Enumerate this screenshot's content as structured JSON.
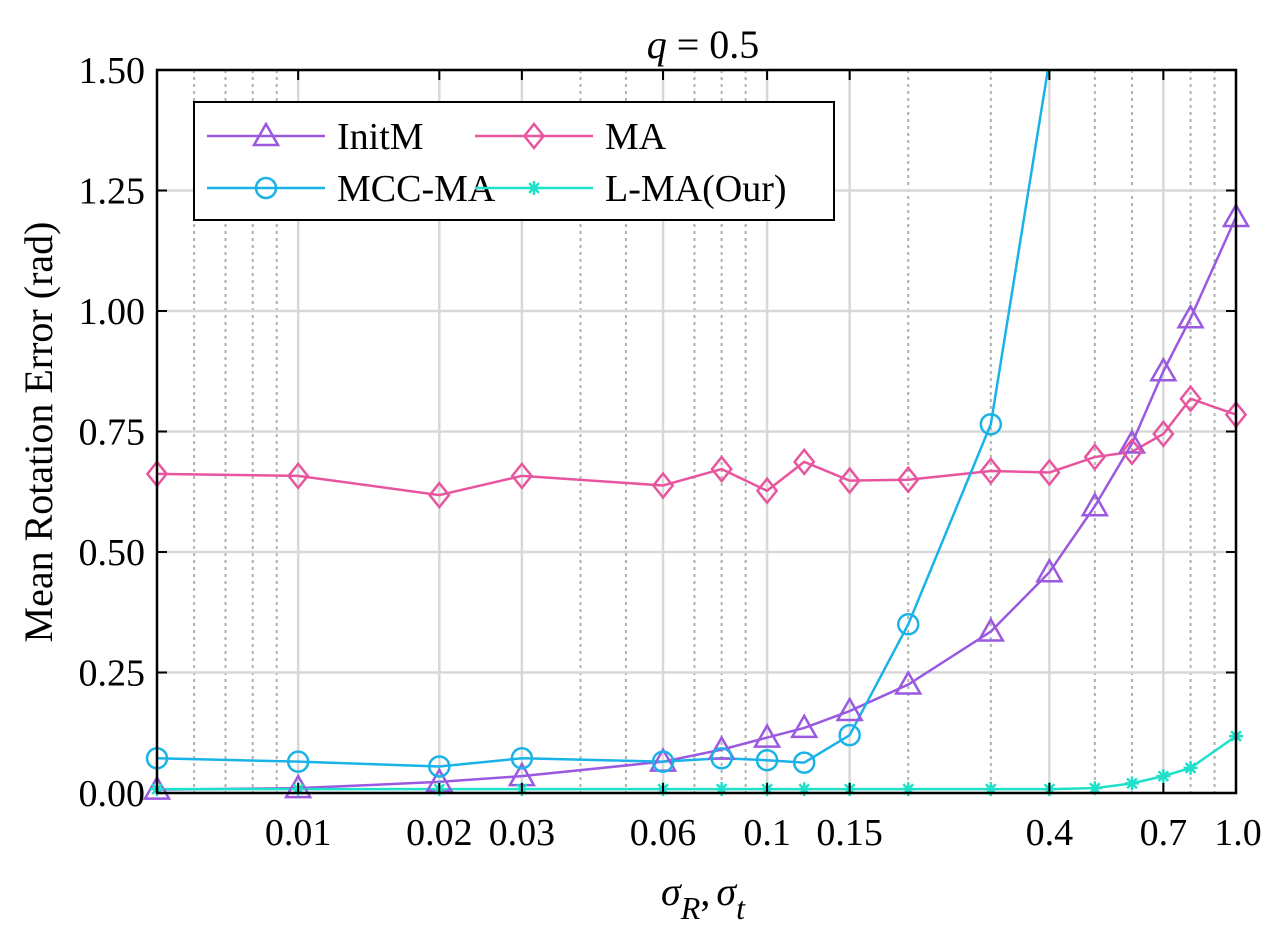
{
  "chart_data": {
    "type": "line",
    "title": "q = 0.5",
    "title_var": "q",
    "title_rest": " = 0.5",
    "xlabel": "σR, σt",
    "xlabel_parts": [
      "σ",
      "R",
      ",",
      "σ",
      "t"
    ],
    "ylabel": "Mean Rotation Error (rad)",
    "xscale": "log",
    "xlim": [
      0.005,
      1.0
    ],
    "ylim": [
      0.0,
      1.5
    ],
    "grid": true,
    "legend_position": "top-left",
    "xtick_labels": [
      {
        "value": 0.01,
        "label": "0.01"
      },
      {
        "value": 0.02,
        "label": "0.02"
      },
      {
        "value": 0.03,
        "label": "0.03"
      },
      {
        "value": 0.06,
        "label": "0.06"
      },
      {
        "value": 0.1,
        "label": "0.1"
      },
      {
        "value": 0.15,
        "label": "0.15"
      },
      {
        "value": 0.4,
        "label": "0.4"
      },
      {
        "value": 0.7,
        "label": "0.7"
      },
      {
        "value": 1.0,
        "label": "1.0"
      }
    ],
    "yticks": [
      {
        "value": 0.0,
        "label": "0.00"
      },
      {
        "value": 0.25,
        "label": "0.25"
      },
      {
        "value": 0.5,
        "label": "0.50"
      },
      {
        "value": 0.75,
        "label": "0.75"
      },
      {
        "value": 1.0,
        "label": "1.00"
      },
      {
        "value": 1.25,
        "label": "1.25"
      },
      {
        "value": 1.5,
        "label": "1.50"
      }
    ],
    "x": [
      0.005,
      0.01,
      0.02,
      0.03,
      0.06,
      0.08,
      0.1,
      0.12,
      0.15,
      0.2,
      0.3,
      0.4,
      0.5,
      0.6,
      0.7,
      0.8,
      1.0
    ],
    "series": [
      {
        "name": "InitM",
        "color": "#9a59e0",
        "marker": "triangle",
        "values": [
          0.007,
          0.01,
          0.023,
          0.035,
          0.065,
          0.09,
          0.115,
          0.135,
          0.17,
          0.225,
          0.335,
          0.458,
          0.595,
          0.725,
          0.875,
          0.985,
          1.195
        ]
      },
      {
        "name": "MA",
        "color": "#e8559f",
        "marker": "diamond",
        "values": [
          0.662,
          0.658,
          0.618,
          0.658,
          0.638,
          0.672,
          0.627,
          0.687,
          0.648,
          0.65,
          0.668,
          0.665,
          0.697,
          0.708,
          0.745,
          0.818,
          0.785
        ]
      },
      {
        "name": "MCC-MA",
        "color": "#1ab3e8",
        "marker": "circle",
        "values": [
          0.072,
          0.065,
          0.055,
          0.072,
          0.065,
          0.072,
          0.068,
          0.063,
          0.12,
          0.35,
          0.765,
          1.52,
          null,
          null,
          null,
          null,
          null
        ]
      },
      {
        "name": "L-MA(Our)",
        "color": "#1fe0c9",
        "marker": "star",
        "values": [
          0.008,
          0.008,
          0.008,
          0.008,
          0.008,
          0.008,
          0.008,
          0.008,
          0.008,
          0.008,
          0.008,
          0.008,
          0.01,
          0.02,
          0.035,
          0.052,
          0.118
        ]
      }
    ]
  }
}
